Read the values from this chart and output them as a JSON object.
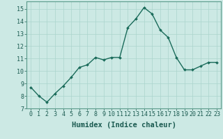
{
  "x": [
    0,
    1,
    2,
    3,
    4,
    5,
    6,
    7,
    8,
    9,
    10,
    11,
    12,
    13,
    14,
    15,
    16,
    17,
    18,
    19,
    20,
    21,
    22,
    23
  ],
  "y": [
    8.7,
    8.0,
    7.5,
    8.2,
    8.8,
    9.5,
    10.3,
    10.5,
    11.1,
    10.9,
    11.1,
    11.1,
    13.5,
    14.2,
    15.1,
    14.6,
    13.3,
    12.7,
    11.1,
    10.1,
    10.1,
    10.4,
    10.7,
    10.7
  ],
  "line_color": "#1a6b5a",
  "marker": "D",
  "marker_size": 2.0,
  "line_width": 1.0,
  "background_color": "#cce9e4",
  "grid_color": "#aad4cd",
  "xlabel": "Humidex (Indice chaleur)",
  "xlabel_fontsize": 7.5,
  "xlim": [
    -0.5,
    23.5
  ],
  "ylim": [
    7,
    15.6
  ],
  "yticks": [
    7,
    8,
    9,
    10,
    11,
    12,
    13,
    14,
    15
  ],
  "xticks": [
    0,
    1,
    2,
    3,
    4,
    5,
    6,
    7,
    8,
    9,
    10,
    11,
    12,
    13,
    14,
    15,
    16,
    17,
    18,
    19,
    20,
    21,
    22,
    23
  ],
  "tick_fontsize": 6.0,
  "spine_color": "#5a9a8a"
}
